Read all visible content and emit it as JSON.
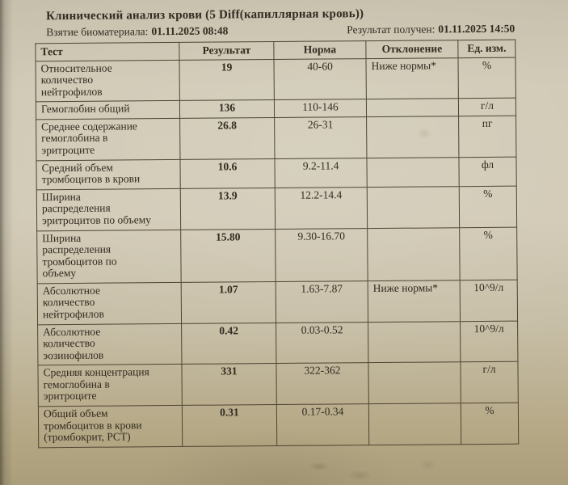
{
  "colors": {
    "paper": "#cfc8b4",
    "ink": "#332b20",
    "table_border": "#4e4433"
  },
  "document": {
    "title": "Клинический анализ крови (5 Diff(капиллярная кровь))",
    "meta": {
      "sample_label": "Взятие биоматериала:",
      "sample_datetime": "01.11.2025 08:48",
      "result_label": "Результат получен:",
      "result_datetime": "01.11.2025 14:50"
    },
    "table": {
      "headers": [
        "Тест",
        "Результат",
        "Норма",
        "Отклонение",
        "Ед. изм."
      ],
      "rows": [
        {
          "test": "Относительное\nколичество\nнейтрофилов",
          "result": "19",
          "norm": "40-60",
          "deviation": "Ниже нормы*",
          "unit": "%"
        },
        {
          "test": "Гемоглобин общий",
          "result": "136",
          "norm": "110-146",
          "deviation": "",
          "unit": "г/л"
        },
        {
          "test": "Среднее содержание\nгемоглобина в\nэритроците",
          "result": "26.8",
          "norm": "26-31",
          "deviation": "",
          "unit": "пг"
        },
        {
          "test": "Средний объем\nтромбоцитов в крови",
          "result": "10.6",
          "norm": "9.2-11.4",
          "deviation": "",
          "unit": "фл"
        },
        {
          "test": "Ширина\nраспределения\nэритроцитов по объему",
          "result": "13.9",
          "norm": "12.2-14.4",
          "deviation": "",
          "unit": "%"
        },
        {
          "test": "Ширина\nраспределения\nтромбоцитов по\nобъему",
          "result": "15.80",
          "norm": "9.30-16.70",
          "deviation": "",
          "unit": "%"
        },
        {
          "test": "Абсолютное\nколичество\nнейтрофилов",
          "result": "1.07",
          "norm": "1.63-7.87",
          "deviation": "Ниже нормы*",
          "unit": "10^9/л"
        },
        {
          "test": "Абсолютное\nколичество\nэозинофилов",
          "result": "0.42",
          "norm": "0.03-0.52",
          "deviation": "",
          "unit": "10^9/л"
        },
        {
          "test": "Средняя концентрация\nгемоглобина в\nэритроците",
          "result": "331",
          "norm": "322-362",
          "deviation": "",
          "unit": "г/л"
        },
        {
          "test": "Общий объем\nтромбоцитов в крови\n(тромбокрит, PCT)",
          "result": "0.31",
          "norm": "0.17-0.34",
          "deviation": "",
          "unit": "%"
        }
      ]
    }
  }
}
